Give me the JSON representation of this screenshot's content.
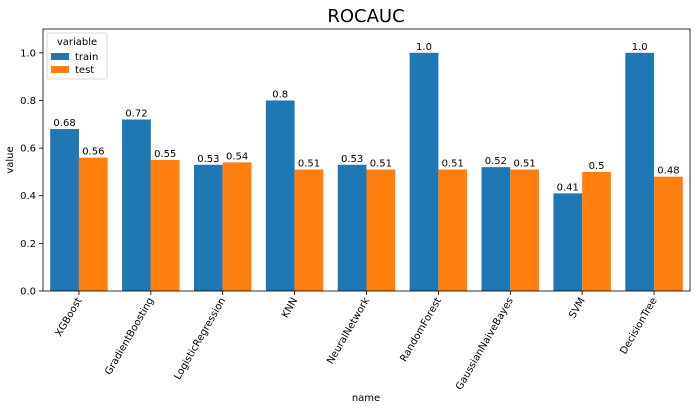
{
  "chart_data": {
    "type": "bar",
    "title": "ROCAUC",
    "xlabel": "name",
    "ylabel": "value",
    "ylim": [
      0,
      1.1
    ],
    "yticks": [
      "0.0",
      "0.2",
      "0.4",
      "0.6",
      "0.8",
      "1.0"
    ],
    "grid": false,
    "legend": {
      "title": "variable",
      "placement": "top-left"
    },
    "categories": [
      "XGBoost",
      "GradientBoosting",
      "LogisticRegression",
      "KNN",
      "NeuralNetwork",
      "RandomForest",
      "GaussianNaiveBayes",
      "SVM",
      "DecisionTree"
    ],
    "series": [
      {
        "name": "train",
        "color": "#1f77b4",
        "values": [
          0.68,
          0.72,
          0.53,
          0.8,
          0.53,
          1.0,
          0.52,
          0.41,
          1.0
        ],
        "labels": [
          "0.68",
          "0.72",
          "0.53",
          "0.8",
          "0.53",
          "1.0",
          "0.52",
          "0.41",
          "1.0"
        ]
      },
      {
        "name": "test",
        "color": "#ff7f0e",
        "values": [
          0.56,
          0.55,
          0.54,
          0.51,
          0.51,
          0.51,
          0.51,
          0.5,
          0.48
        ],
        "labels": [
          "0.56",
          "0.55",
          "0.54",
          "0.51",
          "0.51",
          "0.51",
          "0.51",
          "0.5",
          "0.48"
        ]
      }
    ]
  }
}
